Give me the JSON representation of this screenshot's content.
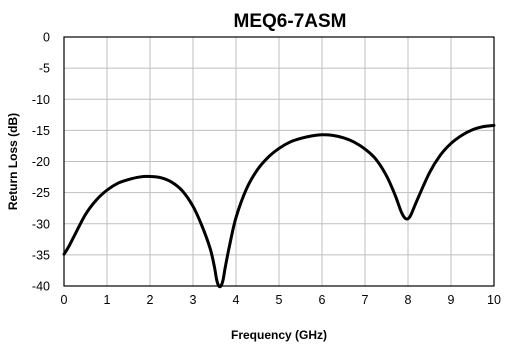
{
  "chart_data": {
    "type": "line",
    "title": "MEQ6-7ASM",
    "xlabel": "Frequency (GHz)",
    "ylabel": "Return Loss (dB)",
    "xlim": [
      0,
      10
    ],
    "ylim": [
      -40,
      0
    ],
    "xticks": [
      "0",
      "1",
      "2",
      "3",
      "4",
      "5",
      "6",
      "7",
      "8",
      "9",
      "10"
    ],
    "yticks": [
      "0",
      "-5",
      "-10",
      "-15",
      "-20",
      "-25",
      "-30",
      "-35",
      "-40"
    ],
    "grid": true,
    "series": [
      {
        "color": "#000000",
        "x": [
          0,
          0.1,
          0.25,
          0.5,
          0.75,
          1.0,
          1.25,
          1.5,
          1.75,
          2.0,
          2.25,
          2.5,
          2.75,
          3.0,
          3.2,
          3.4,
          3.5,
          3.55,
          3.6,
          3.65,
          3.7,
          3.75,
          3.85,
          4.0,
          4.25,
          4.5,
          4.75,
          5.0,
          5.25,
          5.5,
          5.75,
          6.0,
          6.25,
          6.5,
          6.75,
          7.0,
          7.25,
          7.5,
          7.7,
          7.85,
          7.95,
          8.05,
          8.2,
          8.5,
          8.75,
          9.0,
          9.25,
          9.5,
          9.75,
          10.0
        ],
        "y": [
          -34.9,
          -33.8,
          -31.8,
          -28.5,
          -26.2,
          -24.6,
          -23.5,
          -22.9,
          -22.5,
          -22.4,
          -22.6,
          -23.3,
          -24.7,
          -27.2,
          -30.2,
          -34.0,
          -37.0,
          -39.0,
          -40.0,
          -40.0,
          -39.0,
          -37.0,
          -33.5,
          -29.0,
          -24.3,
          -21.3,
          -19.3,
          -17.9,
          -16.9,
          -16.3,
          -15.9,
          -15.7,
          -15.8,
          -16.2,
          -16.9,
          -18.0,
          -19.6,
          -22.3,
          -25.4,
          -28.2,
          -29.2,
          -28.8,
          -26.4,
          -21.8,
          -19.0,
          -17.1,
          -15.8,
          -14.9,
          -14.4,
          -14.2
        ]
      }
    ]
  }
}
